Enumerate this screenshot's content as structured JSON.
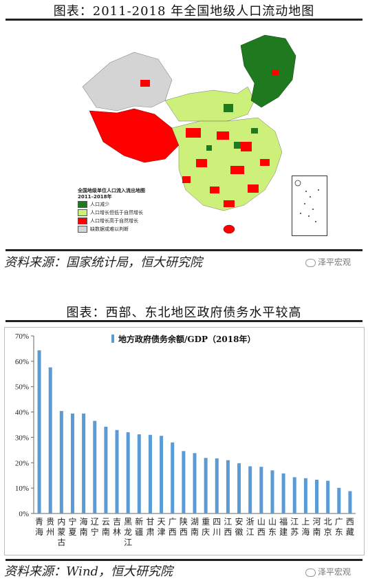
{
  "top": {
    "title": "图表：2011-2018 年全国地级人口流动地图",
    "legend": {
      "title": "全国地级单位人口流入流出地图",
      "subtitle": "2011–2018年",
      "items": [
        {
          "label": "人口减少",
          "color": "#1f7a1f"
        },
        {
          "label": "人口增长但低于自然增长",
          "color": "#ccf07a"
        },
        {
          "label": "人口增长高于自然增长",
          "color": "#ff0000"
        },
        {
          "label": "缺数据或难以判断",
          "color": "#d4d4d4"
        }
      ]
    },
    "source": "资料来源：国家统计局，恒大研究院",
    "watermark": "泽平宏观"
  },
  "bottom": {
    "title": "图表：西部、东北地区政府债务水平较高",
    "source": "资料来源：Wind，恒大研究院",
    "watermark": "泽平宏观"
  },
  "colors": {
    "bar": "#5b9bd5",
    "map_decrease": "#1f7a1f",
    "map_low_growth": "#ccf07a",
    "map_high_growth": "#ff0000",
    "map_missing": "#d4d4d4"
  },
  "chart_data": {
    "type": "bar",
    "title": "",
    "series": [
      {
        "name": "地方政府债务余额/GDP（2018年）",
        "values": [
          64.3,
          57.6,
          40.4,
          39.4,
          39.4,
          36.5,
          34.2,
          32.9,
          32.0,
          31.2,
          31.0,
          30.6,
          28.0,
          24.6,
          23.8,
          21.9,
          21.7,
          21.0,
          19.8,
          18.6,
          18.4,
          17.0,
          15.8,
          14.3,
          13.9,
          13.3,
          12.9,
          10.1,
          8.8
        ]
      }
    ],
    "categories": [
      "青海",
      "贵州",
      "内蒙古",
      "宁夏",
      "海南",
      "辽宁",
      "云南",
      "吉林",
      "黑龙江",
      "新疆",
      "甘肃",
      "天津",
      "广西",
      "陕西",
      "湖南",
      "重庆",
      "四川",
      "江西",
      "安徽",
      "浙江",
      "山西",
      "山东",
      "福建",
      "江苏",
      "上海",
      "河南",
      "北京",
      "广东",
      "西藏"
    ],
    "ylim": [
      0,
      70
    ],
    "yticks": [
      "0%",
      "10%",
      "20%",
      "30%",
      "40%",
      "50%",
      "60%",
      "70%"
    ],
    "grid": false,
    "legend": "top-center"
  }
}
